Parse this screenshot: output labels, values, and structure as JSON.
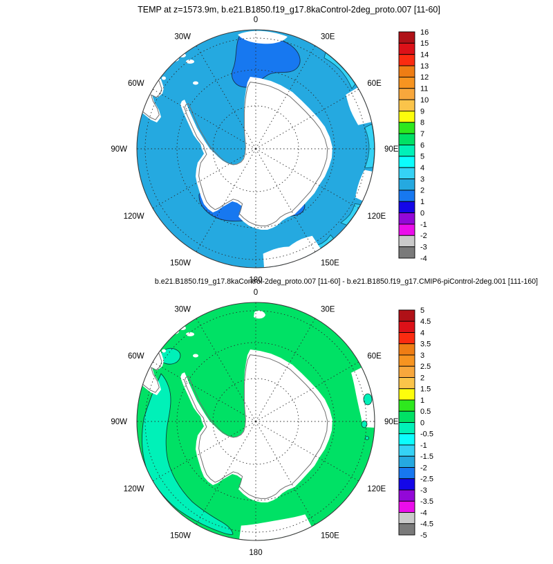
{
  "panels": [
    {
      "id": "top",
      "title": "TEMP at z=1573.9m, b.e21.B1850.f19_g17.8kaControl-2deg_proto.007 [11-60]",
      "colorbar_labels": [
        "16",
        "15",
        "14",
        "13",
        "12",
        "11",
        "10",
        "9",
        "8",
        "7",
        "6",
        "5",
        "4",
        "3",
        "2",
        "1",
        "0",
        "-1",
        "-2",
        "-3",
        "-4"
      ],
      "lon_labels": [
        "0",
        "30E",
        "60E",
        "90E",
        "120E",
        "150E",
        "180",
        "150W",
        "120W",
        "90W",
        "60W",
        "30W"
      ]
    },
    {
      "id": "bottom",
      "title": "b.e21.B1850.f19_g17.8kaControl-2deg_proto.007 [11-60] - b.e21.B1850.f19_g17.CMIP6-piControl-2deg.001 [111-160]",
      "colorbar_labels": [
        "5",
        "4.5",
        "4",
        "3.5",
        "3",
        "2.5",
        "2",
        "1.5",
        "1",
        "0.5",
        "0",
        "-0.5",
        "-1",
        "-1.5",
        "-2",
        "-2.5",
        "-3",
        "-3.5",
        "-4",
        "-4.5",
        "-5"
      ],
      "lon_labels": [
        "0",
        "30E",
        "60E",
        "90E",
        "120E",
        "150E",
        "180",
        "150W",
        "120W",
        "90W",
        "60W",
        "30W"
      ]
    }
  ],
  "palette": {
    "colorbar_colors": [
      "#B01117",
      "#DC1118",
      "#FB2B10",
      "#EF7D14",
      "#F79420",
      "#F8A73C",
      "#FBC44A",
      "#FDFD0C",
      "#2EE81E",
      "#00E165",
      "#00F1B8",
      "#0CFDFD",
      "#35D2F5",
      "#25A9E0",
      "#1778F0",
      "#1407E8",
      "#9308D8",
      "#EB0DEB",
      "#CACACA",
      "#7A7A7A"
    ],
    "top_ocean": "#25A9E0",
    "top_cool_patch": "#1778F0",
    "top_edge_strip": "#35D2F5",
    "bottom_ocean": "#00E165",
    "bottom_cool_band": "#00F1B8",
    "land": "#FFFFFF",
    "coastline": "#6F6F6F",
    "contour_line_blue": "#14324F",
    "contour_line_teal": "#0B4136",
    "contour_line_cyan": "#0B5A6E",
    "graticule": "#2B2B2B",
    "map_border": "#3A3A3A"
  },
  "chart_data": [
    {
      "type": "heatmap",
      "subtype": "filled-contour-map",
      "projection": "south-polar-stereographic",
      "title": "TEMP at z=1573.9m, b.e21.B1850.f19_g17.8kaControl-2deg_proto.007 [11-60]",
      "variable": "TEMP",
      "depth_level": "z=1573.9m",
      "averaging_period": "[11-60]",
      "legend_position": "right",
      "grid": "dotted graticule, meridians every 30 deg, 3 latitude circles",
      "colorbar_ticks": [
        16,
        15,
        14,
        13,
        12,
        11,
        10,
        9,
        8,
        7,
        6,
        5,
        4,
        3,
        2,
        1,
        0,
        -1,
        -2,
        -3,
        -4
      ],
      "colorbar_colors": [
        "#B01117",
        "#DC1118",
        "#FB2B10",
        "#EF7D14",
        "#F79420",
        "#F8A73C",
        "#FBC44A",
        "#FDFD0C",
        "#2EE81E",
        "#00E165",
        "#00F1B8",
        "#0CFDFD",
        "#35D2F5",
        "#25A9E0",
        "#1778F0",
        "#1407E8",
        "#9308D8",
        "#EB0DEB",
        "#CACACA",
        "#7A7A7A"
      ],
      "longitude_labels": [
        "0",
        "30E",
        "60E",
        "90E",
        "120E",
        "150E",
        "180",
        "150W",
        "120W",
        "90W",
        "60W",
        "30W"
      ],
      "field_summary": [
        {
          "region": "most of Southern Ocean",
          "value_range": [
            2,
            3
          ]
        },
        {
          "region": "Weddell Sea sector near 0-30E",
          "value_range": [
            1,
            2
          ]
        },
        {
          "region": "Ross Sea sector 150W-180",
          "value_range": [
            1,
            2
          ]
        },
        {
          "region": "narrow strips along 60E-150E outer edge",
          "value_range": [
            3,
            4
          ]
        },
        {
          "region": "Antarctica and South America",
          "value_range": null,
          "note": "white land mask"
        }
      ]
    },
    {
      "type": "heatmap",
      "subtype": "filled-contour-difference-map",
      "projection": "south-polar-stereographic",
      "title": "b.e21.B1850.f19_g17.8kaControl-2deg_proto.007 [11-60] - b.e21.B1850.f19_g17.CMIP6-piControl-2deg.001 [111-160]",
      "variable": "TEMP difference",
      "legend_position": "right",
      "grid": "dotted graticule, meridians every 30 deg, 3 latitude circles",
      "colorbar_ticks": [
        5,
        4.5,
        4,
        3.5,
        3,
        2.5,
        2,
        1.5,
        1,
        0.5,
        0,
        -0.5,
        -1,
        -1.5,
        -2,
        -2.5,
        -3,
        -3.5,
        -4,
        -4.5,
        -5
      ],
      "colorbar_colors": [
        "#B01117",
        "#DC1118",
        "#FB2B10",
        "#EF7D14",
        "#F79420",
        "#F8A73C",
        "#FBC44A",
        "#FDFD0C",
        "#2EE81E",
        "#00E165",
        "#00F1B8",
        "#0CFDFD",
        "#35D2F5",
        "#25A9E0",
        "#1778F0",
        "#1407E8",
        "#9308D8",
        "#EB0DEB",
        "#CACACA",
        "#7A7A7A"
      ],
      "longitude_labels": [
        "0",
        "30E",
        "60E",
        "90E",
        "120E",
        "150E",
        "180",
        "150W",
        "120W",
        "90W",
        "60W",
        "30W"
      ],
      "field_summary": [
        {
          "region": "most of Southern Ocean",
          "value_range": [
            0,
            0.5
          ]
        },
        {
          "region": "sinuous band 60W-150W (Bellingshausen/Amundsen sector)",
          "value_range": [
            -0.5,
            0
          ]
        },
        {
          "region": "small patches near 60W edge and near 90E",
          "value_range": [
            -0.5,
            0
          ]
        },
        {
          "region": "Antarctica and South America",
          "value_range": null,
          "note": "white land mask"
        }
      ]
    }
  ]
}
